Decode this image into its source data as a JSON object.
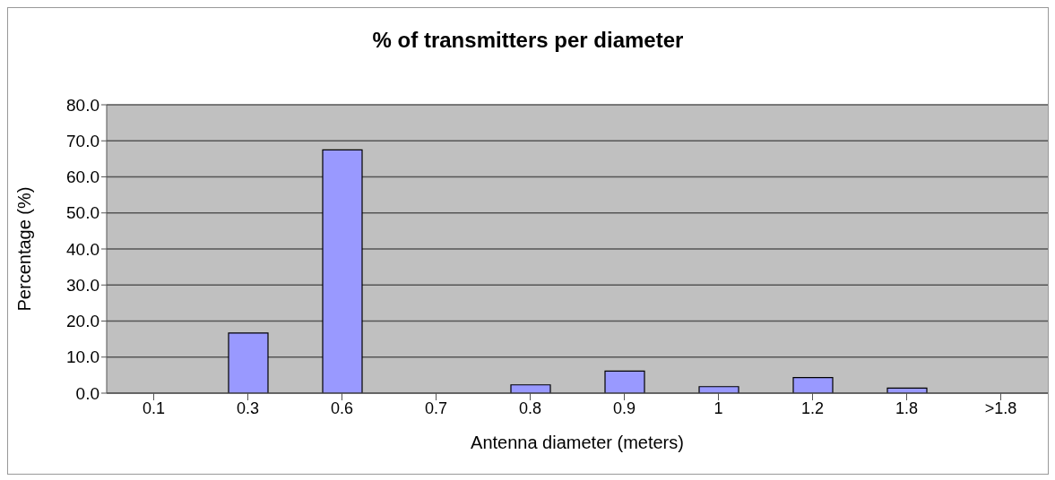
{
  "chart_data": {
    "type": "bar",
    "title": "% of transmitters per diameter",
    "xlabel": "Antenna diameter (meters)",
    "ylabel": "Percentage (%)",
    "categories": [
      "0.1",
      "0.3",
      "0.6",
      "0.7",
      "0.8",
      "0.9",
      "1",
      "1.2",
      "1.8",
      ">1.8"
    ],
    "values": [
      0,
      16.7,
      67.5,
      0,
      2.3,
      6.1,
      1.8,
      4.3,
      1.4,
      0
    ],
    "color": "#9999ff",
    "ylim": [
      0,
      80
    ],
    "yticks": [
      {
        "value": 0,
        "label": "0.0"
      },
      {
        "value": 10,
        "label": "10.0"
      },
      {
        "value": 20,
        "label": "20.0"
      },
      {
        "value": 30,
        "label": "30.0"
      },
      {
        "value": 40,
        "label": "40.0"
      },
      {
        "value": 50,
        "label": "50.0"
      },
      {
        "value": 60,
        "label": "60.0"
      },
      {
        "value": 70,
        "label": "70.0"
      },
      {
        "value": 80,
        "label": "80.0"
      }
    ],
    "grid": "y"
  }
}
